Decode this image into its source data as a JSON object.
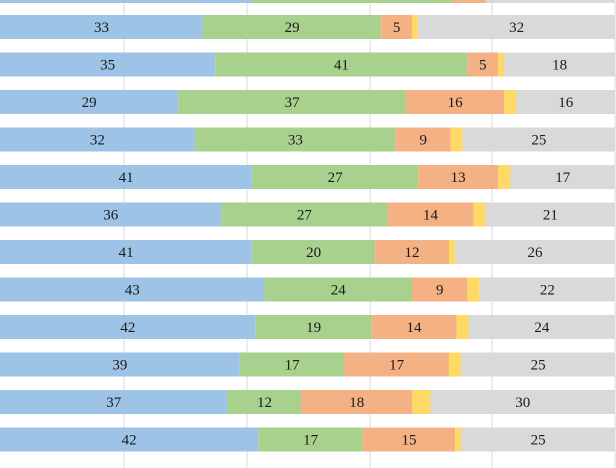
{
  "chart_data": {
    "type": "bar",
    "orientation": "horizontal",
    "stacked": true,
    "normalized": true,
    "grid": true,
    "legend": "none",
    "series": [
      {
        "color": "#9dc3e6",
        "values": [
          33,
          35,
          29,
          32,
          41,
          36,
          41,
          43,
          42,
          39,
          37,
          42
        ]
      },
      {
        "color": "#a9d18e",
        "values": [
          29,
          41,
          37,
          33,
          27,
          27,
          20,
          24,
          19,
          17,
          12,
          17
        ]
      },
      {
        "color": "#f4b183",
        "values": [
          5,
          5,
          16,
          9,
          13,
          14,
          12,
          9,
          14,
          17,
          18,
          15
        ]
      },
      {
        "color": "#ffd966",
        "values": [
          1,
          1,
          2,
          2,
          2,
          2,
          1,
          2,
          2,
          2,
          3,
          1
        ]
      },
      {
        "color": "#d9d9d9",
        "values": [
          32,
          18,
          16,
          25,
          17,
          21,
          26,
          22,
          24,
          25,
          30,
          25
        ]
      }
    ],
    "value_labels_shown_for_series": [
      0,
      1,
      2,
      4
    ],
    "partial_top_bar_visible": true
  }
}
